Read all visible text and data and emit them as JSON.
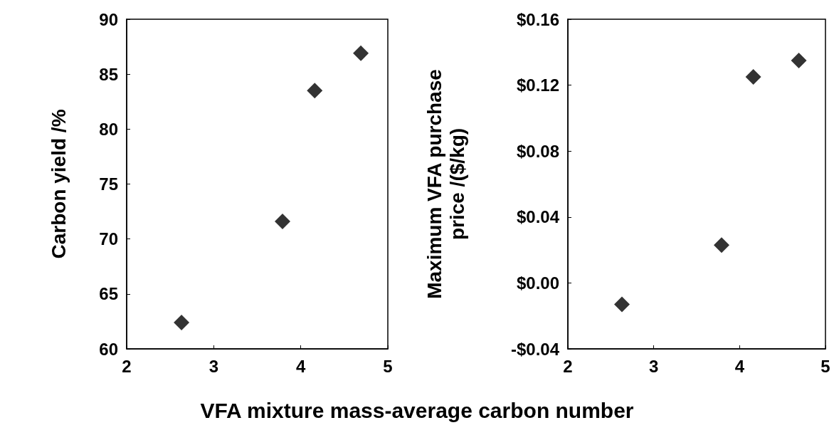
{
  "chart_data": [
    {
      "type": "scatter",
      "xlabel": "VFA mixture mass-average carbon number",
      "ylabel": "Carbon yield /%",
      "x": [
        2.63,
        3.79,
        4.16,
        4.69
      ],
      "series": [
        {
          "color": "#000000",
          "values": [
            62.4,
            71.6,
            83.5,
            86.9
          ]
        }
      ],
      "xlim": [
        2,
        5
      ],
      "xticks": [
        2,
        3,
        4,
        5
      ],
      "ylim": [
        60,
        90
      ],
      "yticks": [
        60,
        65,
        70,
        75,
        80,
        85,
        90
      ],
      "marker": "diamond",
      "grid": false
    },
    {
      "type": "scatter",
      "ylabel": "Maximum VFA purchase price /($/kg)",
      "x": [
        2.63,
        3.79,
        4.16,
        4.69
      ],
      "series": [
        {
          "color": "#000000",
          "values": [
            -0.013,
            0.023,
            0.125,
            0.135
          ]
        }
      ],
      "xlim": [
        2,
        5
      ],
      "xticks": [
        2,
        3,
        4,
        5
      ],
      "ylim": [
        -0.04,
        0.16
      ],
      "yticks": [
        {
          "value": -0.04,
          "label": "-$0.04"
        },
        {
          "value": 0,
          "label": "$0.00"
        },
        {
          "value": 0.04,
          "label": "$0.04"
        },
        {
          "value": 0.08,
          "label": "$0.08"
        },
        {
          "value": 0.12,
          "label": "$0.12"
        },
        {
          "value": 0.16,
          "label": "$0.16"
        }
      ],
      "marker": "diamond",
      "grid": false
    }
  ]
}
